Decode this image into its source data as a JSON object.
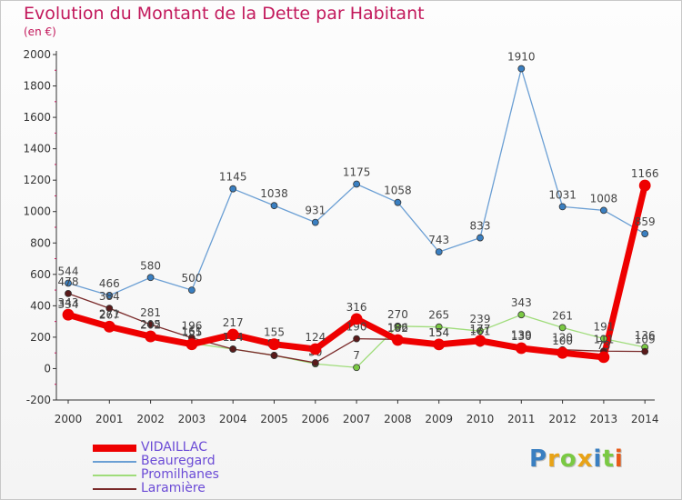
{
  "chart_data": {
    "type": "line",
    "title": "Evolution du Montant de la Dette par Habitant",
    "subtitle": "(en €)",
    "x": [
      "2000",
      "2001",
      "2002",
      "2003",
      "2004",
      "2005",
      "2006",
      "2007",
      "2008",
      "2009",
      "2010",
      "2011",
      "2012",
      "2013",
      "2014"
    ],
    "ylim": [
      -200,
      2000
    ],
    "yticks": [
      "-200",
      "0",
      "200",
      "400",
      "600",
      "800",
      "1000",
      "1200",
      "1400",
      "1600",
      "1800",
      "2000"
    ],
    "grid": false,
    "legend_position": "bottom-left",
    "series": [
      {
        "name": "Beauregard",
        "color": "#6b9fd4",
        "marker": "#3a7fc1",
        "width": 1.3,
        "values": [
          544,
          466,
          580,
          500,
          1145,
          1038,
          931,
          1175,
          1058,
          743,
          833,
          1910,
          1031,
          1008,
          859
        ],
        "labels": [
          "544",
          "466",
          "580",
          "500",
          "1145",
          "1038",
          "931",
          "1175",
          "1058",
          "743",
          "833",
          "1910",
          "1031",
          "1008",
          "859"
        ]
      },
      {
        "name": "Promilhanes",
        "color": "#9fdc7a",
        "marker": "#7ac943",
        "width": 1.3,
        "values": [
          334,
          271,
          202,
          161,
          124,
          84,
          30,
          7,
          270,
          265,
          239,
          343,
          261,
          191,
          136
        ],
        "labels": [
          "334",
          "271",
          "202",
          "161",
          "124",
          "84",
          "30",
          "7",
          "270",
          "265",
          "239",
          "343",
          "261",
          "191",
          "136"
        ]
      },
      {
        "name": "Laramière",
        "color": "#7a2a2a",
        "marker": "#5a1a1a",
        "width": 1.3,
        "values": [
          478,
          384,
          281,
          196,
          124,
          84,
          37,
          190,
          186,
          154,
          161,
          139,
          120,
          111,
          109
        ],
        "labels": [
          "478",
          "384",
          "281",
          "196",
          "124",
          "84",
          "37",
          "190",
          "186",
          "154",
          "161",
          "139",
          "120",
          "111",
          "109"
        ]
      },
      {
        "name": "VIDAILLAC",
        "color": "#ee0000",
        "marker": "#ee0000",
        "width": 7,
        "values": [
          343,
          267,
          205,
          155,
          217,
          155,
          124,
          316,
          182,
          154,
          177,
          130,
          100,
          73,
          1166
        ],
        "labels": [
          "343",
          "267",
          "205",
          "155",
          "217",
          "155",
          "124",
          "316",
          "182",
          "154",
          "177",
          "130",
          "100",
          "73",
          "1166"
        ]
      }
    ]
  },
  "legend": {
    "items": [
      "VIDAILLAC",
      "Beauregard",
      "Promilhanes",
      "Laramière"
    ]
  },
  "logo": {
    "letters": [
      "P",
      "r",
      "o",
      "x",
      "i",
      "t",
      "i"
    ],
    "colors": [
      "#3a7fc1",
      "#e8a317",
      "#7ac943",
      "#e8a317",
      "#3a7fc1",
      "#7ac943",
      "#e85a17"
    ]
  }
}
